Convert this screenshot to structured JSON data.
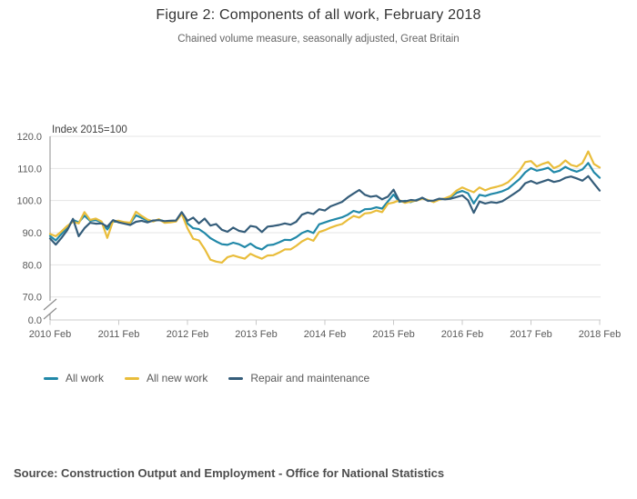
{
  "title": "Figure 2: Components of all work, February 2018",
  "subtitle": "Chained volume measure, seasonally adjusted, Great Britain",
  "source": "Source: Construction Output and Employment - Office for National Statistics",
  "chart_data": {
    "type": "line",
    "title": "Figure 2: Components of all work, February 2018",
    "subtitle": "Chained volume measure, seasonally adjusted, Great Britain",
    "ylabel": "Index 2015=100",
    "xlabel": "",
    "x_unit": "month",
    "x_start": "2010 Feb",
    "x_end": "2018 Feb",
    "grid": true,
    "legend_position": "bottom-left",
    "y_axis_break": true,
    "ylim_displayed": [
      70,
      120
    ],
    "y_ticks": [
      {
        "label": "120.0",
        "value": 120
      },
      {
        "label": "110.0",
        "value": 110
      },
      {
        "label": "100.0",
        "value": 100
      },
      {
        "label": "90.0",
        "value": 90
      },
      {
        "label": "80.0",
        "value": 80
      },
      {
        "label": "70.0",
        "value": 70
      },
      {
        "label": "0.0",
        "value": 0
      }
    ],
    "x_ticks": [
      {
        "label": "2010 Feb",
        "month": 0
      },
      {
        "label": "2011 Feb",
        "month": 12
      },
      {
        "label": "2012 Feb",
        "month": 24
      },
      {
        "label": "2013 Feb",
        "month": 36
      },
      {
        "label": "2014 Feb",
        "month": 48
      },
      {
        "label": "2015 Feb",
        "month": 60
      },
      {
        "label": "2016 Feb",
        "month": 72
      },
      {
        "label": "2017 Feb",
        "month": 84
      },
      {
        "label": "2018 Feb",
        "month": 96
      }
    ],
    "series": [
      {
        "name": "All work",
        "color": "#2188a8",
        "values": [
          89.0,
          87.6,
          89.6,
          91.6,
          94.0,
          93.2,
          95.3,
          93.7,
          93.9,
          93.3,
          91.0,
          93.4,
          93.5,
          93.2,
          92.9,
          95.4,
          94.6,
          93.8,
          93.6,
          94.1,
          93.5,
          93.4,
          93.6,
          96.2,
          92.9,
          91.4,
          91.1,
          89.9,
          88.3,
          87.3,
          86.4,
          86.2,
          86.9,
          86.4,
          85.5,
          86.6,
          85.4,
          84.8,
          86.1,
          86.3,
          87.0,
          87.8,
          87.7,
          88.6,
          89.9,
          90.6,
          89.9,
          92.6,
          93.2,
          93.8,
          94.3,
          94.8,
          95.6,
          96.8,
          96.3,
          97.3,
          97.4,
          97.9,
          97.5,
          99.7,
          101.9,
          99.6,
          99.9,
          99.5,
          100.2,
          100.8,
          100.1,
          99.7,
          100.4,
          100.6,
          101.1,
          102.4,
          103.0,
          102.3,
          99.1,
          101.8,
          101.4,
          102.0,
          102.4,
          102.9,
          103.7,
          105.2,
          106.7,
          108.8,
          110.1,
          109.3,
          109.7,
          110.2,
          108.8,
          109.3,
          110.5,
          109.6,
          109.0,
          109.7,
          111.7,
          108.8,
          107.1
        ]
      },
      {
        "name": "All new work",
        "color": "#e9bd3b",
        "values": [
          89.6,
          88.9,
          90.4,
          92.1,
          93.4,
          92.9,
          96.4,
          94.0,
          94.4,
          93.5,
          88.4,
          93.6,
          93.7,
          93.3,
          93.1,
          96.5,
          95.2,
          94.1,
          93.5,
          94.2,
          93.1,
          93.2,
          93.5,
          95.9,
          91.4,
          88.1,
          87.6,
          84.9,
          81.6,
          81.0,
          80.7,
          82.4,
          82.9,
          82.4,
          81.9,
          83.4,
          82.6,
          81.9,
          82.9,
          83.0,
          83.8,
          84.8,
          84.8,
          85.9,
          87.3,
          88.2,
          87.5,
          90.2,
          90.8,
          91.6,
          92.2,
          92.7,
          94.0,
          95.2,
          94.7,
          96.0,
          96.2,
          96.9,
          96.4,
          99.0,
          99.4,
          100.1,
          99.3,
          99.7,
          100.0,
          100.6,
          100.2,
          99.5,
          100.3,
          100.7,
          101.4,
          103.1,
          104.1,
          103.3,
          102.6,
          104.1,
          103.2,
          103.9,
          104.3,
          104.8,
          105.7,
          107.4,
          109.3,
          112.0,
          112.3,
          110.6,
          111.4,
          112.0,
          110.1,
          110.9,
          112.5,
          111.1,
          110.6,
          111.7,
          115.3,
          111.4,
          110.3
        ]
      },
      {
        "name": "Repair and maintenance",
        "color": "#355d7a",
        "values": [
          88.2,
          86.3,
          88.4,
          90.8,
          94.3,
          88.9,
          91.4,
          93.1,
          92.8,
          92.9,
          91.9,
          93.9,
          93.2,
          92.8,
          92.4,
          93.4,
          93.7,
          93.2,
          93.8,
          93.9,
          93.6,
          93.7,
          93.8,
          96.4,
          93.7,
          94.7,
          92.9,
          94.4,
          92.2,
          92.7,
          90.9,
          90.3,
          91.6,
          90.6,
          90.2,
          92.1,
          91.8,
          90.2,
          91.9,
          92.1,
          92.4,
          92.9,
          92.5,
          93.4,
          95.6,
          96.3,
          95.8,
          97.3,
          96.9,
          98.2,
          98.9,
          99.6,
          101.0,
          102.2,
          103.3,
          101.8,
          101.2,
          101.5,
          100.4,
          101.2,
          103.4,
          99.9,
          99.7,
          100.2,
          100.0,
          100.9,
          99.9,
          100.0,
          100.6,
          100.4,
          100.6,
          101.1,
          101.6,
          100.1,
          96.2,
          99.7,
          99.1,
          99.5,
          99.3,
          99.8,
          100.9,
          102.1,
          103.3,
          105.4,
          106.1,
          105.3,
          105.9,
          106.5,
          105.8,
          106.2,
          107.1,
          107.5,
          106.9,
          106.2,
          107.6,
          105.3,
          103.1
        ]
      }
    ]
  }
}
